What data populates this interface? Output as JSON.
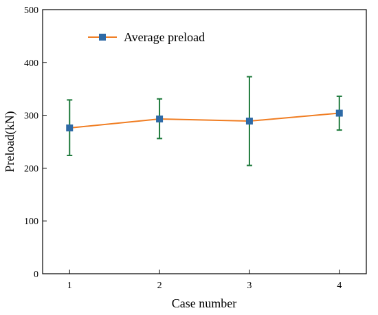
{
  "chart_data": {
    "type": "line",
    "xlabel": "Case number",
    "ylabel": "Preload(kN)",
    "xlim": [
      0.7,
      4.3
    ],
    "ylim": [
      0,
      500
    ],
    "x_ticks": [
      1,
      2,
      3,
      4
    ],
    "y_ticks": [
      0,
      100,
      200,
      300,
      400,
      500
    ],
    "grid": false,
    "legend_position": "top-left",
    "series": [
      {
        "name": "Average preload",
        "line_color": "#f07d22",
        "marker_color": "#2e6aa6",
        "marker": "square",
        "errorbar_color": "#1e7a3c",
        "x": [
          1,
          2,
          3,
          4
        ],
        "y": [
          276,
          293,
          289,
          304
        ],
        "err_upper": [
          329,
          331,
          373,
          336
        ],
        "err_lower": [
          224,
          256,
          205,
          272
        ]
      }
    ]
  }
}
